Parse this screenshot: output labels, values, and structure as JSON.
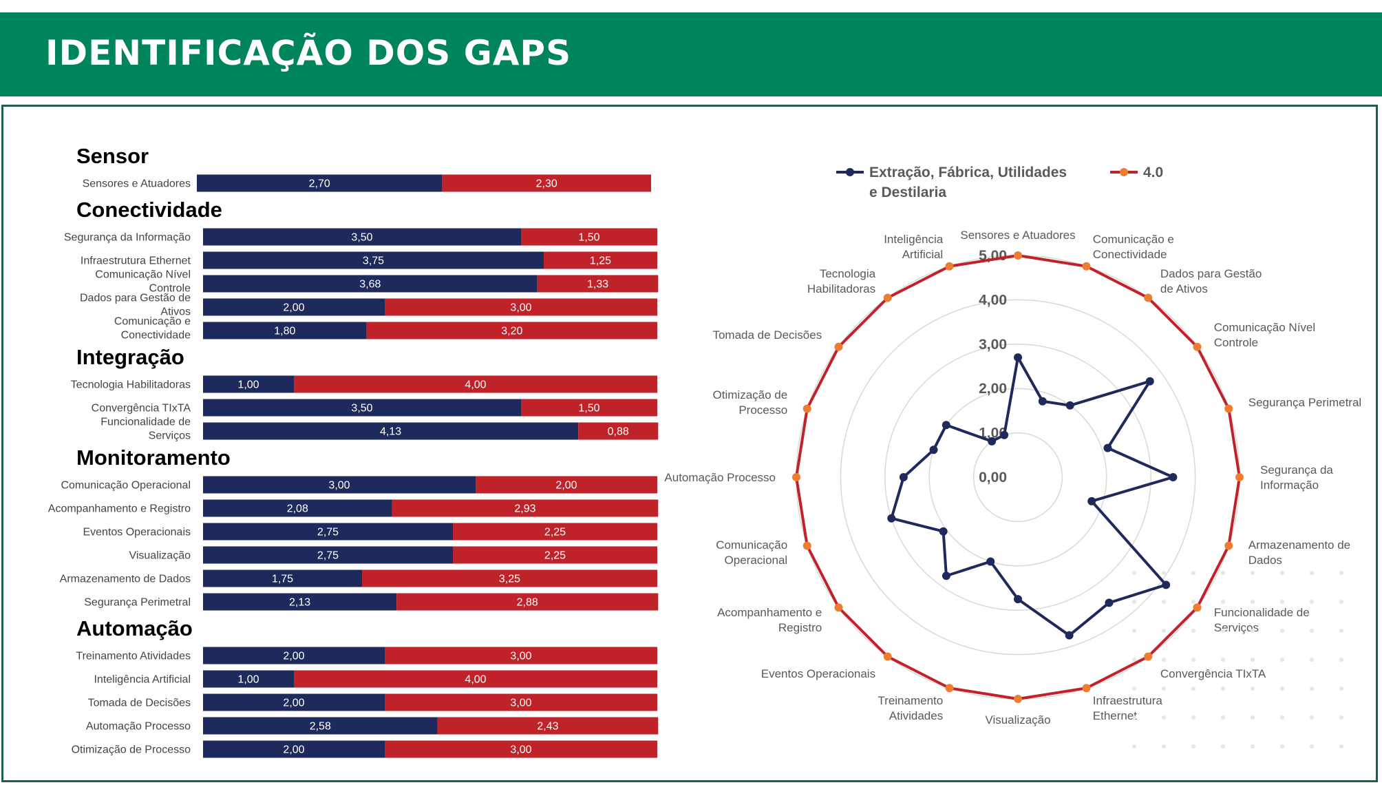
{
  "header": {
    "title": "IDENTIFICAÇÃO DOS GAPS"
  },
  "colors": {
    "header_bg": "#00845c",
    "series_current": "#1f2a5c",
    "series_gap": "#c0222a",
    "series_target_marker": "#ee7d31",
    "radar_grid": "#d9d9d9",
    "text": "#444444"
  },
  "chart_data": [
    {
      "type": "bar",
      "orientation": "horizontal",
      "stacked": true,
      "xlim": [
        0,
        5
      ],
      "groups": [
        {
          "name": "Sensor",
          "items": [
            {
              "label": "Sensores e Atuadores",
              "current": 2.7,
              "current_label": "2,70",
              "gap": 2.3,
              "gap_label": "2,30"
            }
          ]
        },
        {
          "name": "Conectividade",
          "items": [
            {
              "label": "Segurança da Informação",
              "current": 3.5,
              "current_label": "3,50",
              "gap": 1.5,
              "gap_label": "1,50"
            },
            {
              "label": "Infraestrutura Ethernet",
              "current": 3.75,
              "current_label": "3,75",
              "gap": 1.25,
              "gap_label": "1,25"
            },
            {
              "label": "Comunicação Nível Controle",
              "current": 3.68,
              "current_label": "3,68",
              "gap": 1.33,
              "gap_label": "1,33"
            },
            {
              "label": "Dados para Gestão de Ativos",
              "current": 2.0,
              "current_label": "2,00",
              "gap": 3.0,
              "gap_label": "3,00"
            },
            {
              "label": "Comunicação e Conectividade",
              "current": 1.8,
              "current_label": "1,80",
              "gap": 3.2,
              "gap_label": "3,20"
            }
          ]
        },
        {
          "name": "Integração",
          "items": [
            {
              "label": "Tecnologia Habilitadoras",
              "current": 1.0,
              "current_label": "1,00",
              "gap": 4.0,
              "gap_label": "4,00"
            },
            {
              "label": "Convergência TIxTA",
              "current": 3.5,
              "current_label": "3,50",
              "gap": 1.5,
              "gap_label": "1,50"
            },
            {
              "label": "Funcionalidade de Serviços",
              "current": 4.13,
              "current_label": "4,13",
              "gap": 0.88,
              "gap_label": "0,88"
            }
          ]
        },
        {
          "name": "Monitoramento",
          "items": [
            {
              "label": "Comunicação Operacional",
              "current": 3.0,
              "current_label": "3,00",
              "gap": 2.0,
              "gap_label": "2,00"
            },
            {
              "label": "Acompanhamento e Registro",
              "current": 2.08,
              "current_label": "2,08",
              "gap": 2.93,
              "gap_label": "2,93"
            },
            {
              "label": "Eventos Operacionais",
              "current": 2.75,
              "current_label": "2,75",
              "gap": 2.25,
              "gap_label": "2,25"
            },
            {
              "label": "Visualização",
              "current": 2.75,
              "current_label": "2,75",
              "gap": 2.25,
              "gap_label": "2,25"
            },
            {
              "label": "Armazenamento de Dados",
              "current": 1.75,
              "current_label": "1,75",
              "gap": 3.25,
              "gap_label": "3,25"
            },
            {
              "label": "Segurança Perimetral",
              "current": 2.13,
              "current_label": "2,13",
              "gap": 2.88,
              "gap_label": "2,88"
            }
          ]
        },
        {
          "name": "Automação",
          "items": [
            {
              "label": "Treinamento Atividades",
              "current": 2.0,
              "current_label": "2,00",
              "gap": 3.0,
              "gap_label": "3,00"
            },
            {
              "label": "Inteligência Artificial",
              "current": 1.0,
              "current_label": "1,00",
              "gap": 4.0,
              "gap_label": "4,00"
            },
            {
              "label": "Tomada de Decisões",
              "current": 2.0,
              "current_label": "2,00",
              "gap": 3.0,
              "gap_label": "3,00"
            },
            {
              "label": "Automação Processo",
              "current": 2.58,
              "current_label": "2,58",
              "gap": 2.43,
              "gap_label": "2,43"
            },
            {
              "label": "Otimização de Processo",
              "current": 2.0,
              "current_label": "2,00",
              "gap": 3.0,
              "gap_label": "3,00"
            }
          ]
        }
      ]
    },
    {
      "type": "radar",
      "legend_position": "top",
      "rlim": [
        0,
        5
      ],
      "ticks": [
        "0,00",
        "1,00",
        "2,00",
        "3,00",
        "4,00",
        "5,00"
      ],
      "categories": [
        "Sensores e Atuadores",
        "Comunicação e Conectividade",
        "Dados para Gestão de Ativos",
        "Comunicação Nível Controle",
        "Segurança Perimetral",
        "Segurança da Informação",
        "Armazenamento de Dados",
        "Funcionalidade de Serviços",
        "Convergência TIxTA",
        "Infraestrutura Ethernet",
        "Visualização",
        "Treinamento Atividades",
        "Eventos Operacionais",
        "Acompanhamento e Registro",
        "Comunicação Operacional",
        "Automação Processo",
        "Otimização de Processo",
        "Tomada de Decisões",
        "Tecnologia Habilitadoras",
        "Inteligência Artificial"
      ],
      "series": [
        {
          "name": "Extração, Fábrica, Utilidades e Destilaria",
          "values": [
            2.7,
            1.8,
            2.0,
            3.68,
            2.13,
            3.5,
            1.75,
            4.13,
            3.5,
            3.75,
            2.75,
            2.0,
            2.75,
            2.08,
            3.0,
            2.58,
            2.0,
            2.0,
            1.0,
            1.0
          ]
        },
        {
          "name": "4.0",
          "values": [
            5,
            5,
            5,
            5,
            5,
            5,
            5,
            5,
            5,
            5,
            5,
            5,
            5,
            5,
            5,
            5,
            5,
            5,
            5,
            5
          ]
        }
      ]
    }
  ]
}
